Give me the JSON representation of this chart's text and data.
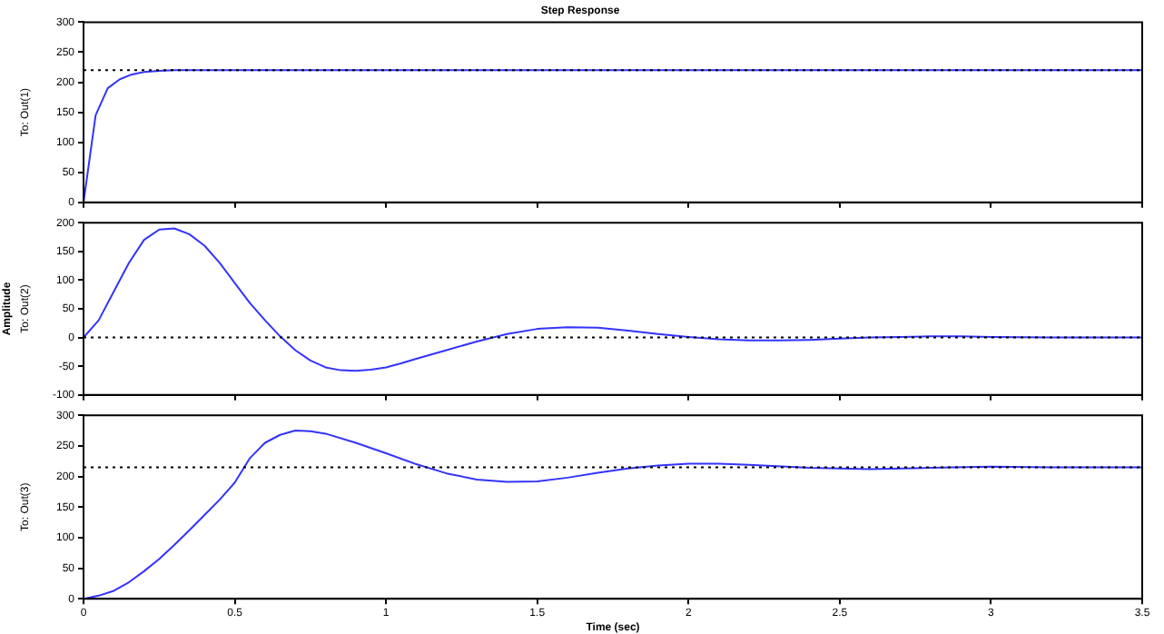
{
  "chart_data": [
    {
      "type": "line",
      "title": "Step Response",
      "ylabel": "To: Out(1)",
      "xlim": [
        0,
        3.5
      ],
      "xticks": [
        0,
        0.5,
        1,
        1.5,
        2,
        2.5,
        3,
        3.5
      ],
      "ylim": [
        0,
        300
      ],
      "yticks": [
        0,
        50,
        100,
        150,
        200,
        250,
        300
      ],
      "tick_labels": "y",
      "grid": false,
      "legend": false,
      "marker": "none",
      "series": [
        {
          "color": "#3333ff",
          "x": [
            0,
            0.04,
            0.08,
            0.12,
            0.16,
            0.2,
            0.25,
            0.3,
            0.4,
            1,
            2,
            3,
            3.5
          ],
          "values": [
            0,
            145,
            190,
            205,
            213,
            217,
            219,
            220,
            220,
            220,
            220,
            220,
            220
          ]
        }
      ],
      "ref_lines": [
        {
          "axis": "y",
          "value": 220,
          "line_style": "dotted",
          "color": "#000000"
        }
      ]
    },
    {
      "type": "line",
      "ylabel": "To: Out(2)",
      "annotations": [
        "Amplitude"
      ],
      "xlim": [
        0,
        3.5
      ],
      "xticks": [
        0,
        0.5,
        1,
        1.5,
        2,
        2.5,
        3,
        3.5
      ],
      "ylim": [
        -100,
        200
      ],
      "yticks": [
        -100,
        -50,
        0,
        50,
        100,
        150,
        200
      ],
      "tick_labels": "y",
      "grid": false,
      "legend": false,
      "marker": "none",
      "series": [
        {
          "color": "#3333ff",
          "x": [
            0,
            0.05,
            0.1,
            0.15,
            0.2,
            0.25,
            0.3,
            0.35,
            0.4,
            0.45,
            0.5,
            0.55,
            0.6,
            0.65,
            0.7,
            0.75,
            0.8,
            0.85,
            0.9,
            0.95,
            1,
            1.05,
            1.1,
            1.2,
            1.3,
            1.4,
            1.5,
            1.6,
            1.7,
            1.8,
            1.9,
            2,
            2.1,
            2.2,
            2.3,
            2.4,
            2.5,
            2.6,
            2.7,
            2.8,
            2.9,
            3,
            3.2,
            3.5
          ],
          "values": [
            0,
            30,
            80,
            130,
            170,
            188,
            190,
            180,
            160,
            130,
            95,
            60,
            30,
            2,
            -22,
            -40,
            -52,
            -57,
            -58,
            -56,
            -52,
            -45,
            -37,
            -22,
            -7,
            6,
            15,
            18,
            17,
            12,
            6,
            1,
            -3,
            -5,
            -5,
            -4,
            -2,
            0,
            1,
            2,
            2,
            1,
            0,
            0
          ]
        }
      ],
      "ref_lines": [
        {
          "axis": "y",
          "value": 0,
          "line_style": "dotted",
          "color": "#000000"
        }
      ]
    },
    {
      "type": "line",
      "ylabel": "To: Out(3)",
      "xlabel": "Time (sec)",
      "xlim": [
        0,
        3.5
      ],
      "xticks": [
        0,
        0.5,
        1,
        1.5,
        2,
        2.5,
        3,
        3.5
      ],
      "ylim": [
        0,
        300
      ],
      "yticks": [
        0,
        50,
        100,
        150,
        200,
        250,
        300
      ],
      "grid": false,
      "legend": false,
      "marker": "none",
      "series": [
        {
          "color": "#3333ff",
          "x": [
            0,
            0.05,
            0.1,
            0.15,
            0.2,
            0.25,
            0.3,
            0.35,
            0.4,
            0.45,
            0.5,
            0.55,
            0.6,
            0.65,
            0.7,
            0.75,
            0.8,
            0.9,
            1,
            1.1,
            1.2,
            1.3,
            1.4,
            1.5,
            1.6,
            1.7,
            1.8,
            1.9,
            2,
            2.1,
            2.2,
            2.4,
            2.6,
            2.8,
            3,
            3.2,
            3.5
          ],
          "values": [
            0,
            5,
            13,
            27,
            45,
            65,
            88,
            112,
            137,
            162,
            190,
            230,
            255,
            268,
            275,
            274,
            270,
            255,
            238,
            220,
            205,
            195,
            191,
            192,
            198,
            206,
            213,
            218,
            221,
            221,
            219,
            214,
            212,
            214,
            216,
            215,
            215
          ]
        }
      ],
      "ref_lines": [
        {
          "axis": "y",
          "value": 215,
          "line_style": "dotted",
          "color": "#000000"
        }
      ]
    }
  ]
}
